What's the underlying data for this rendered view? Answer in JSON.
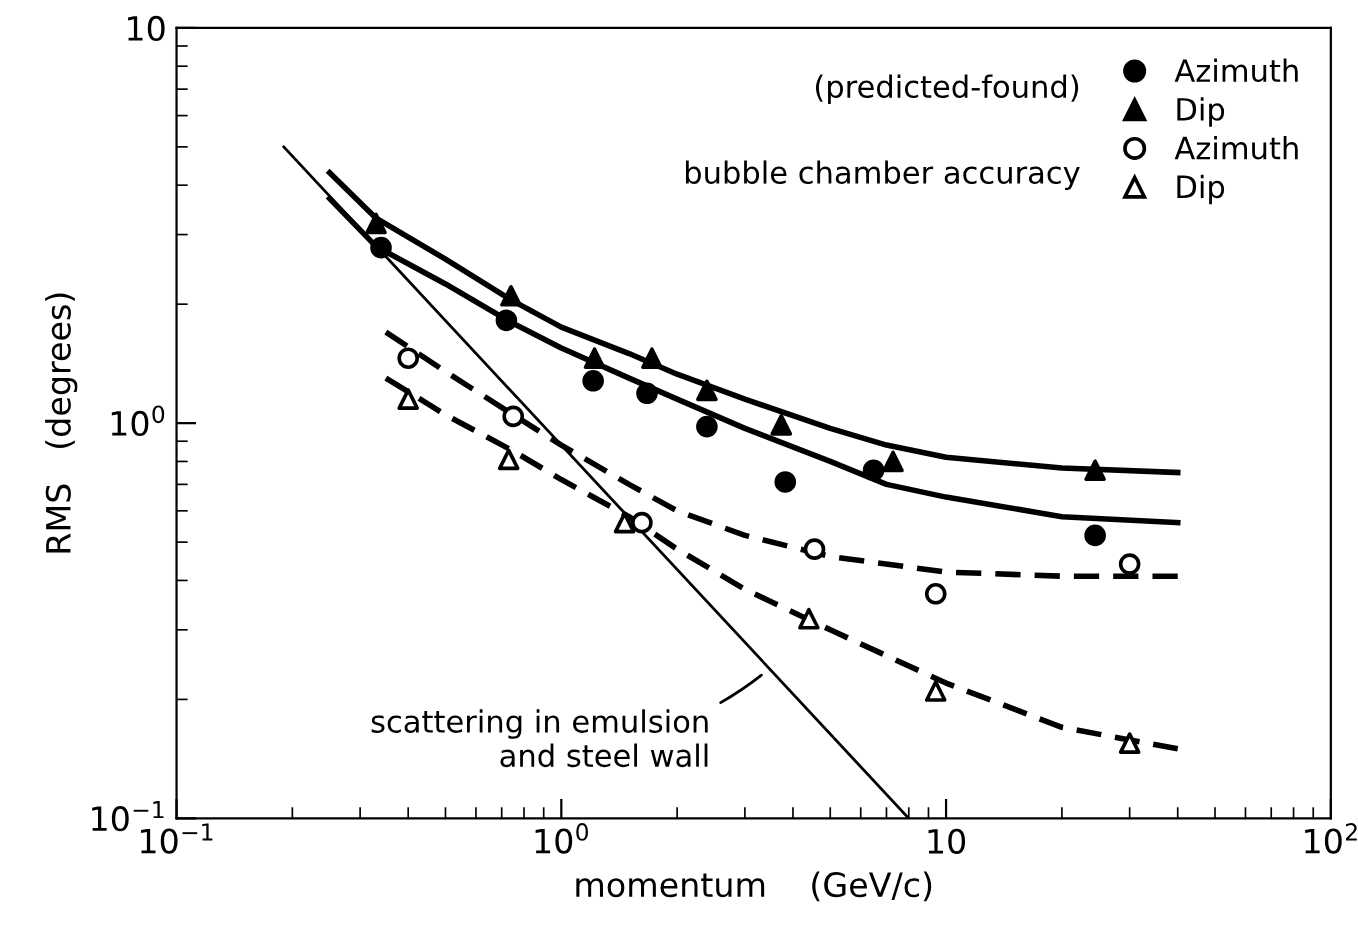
{
  "chart_data": {
    "type": "scatter",
    "xlabel": "momentum    (GeV/c)",
    "ylabel": "RMS   (degrees)",
    "log": "xy",
    "xlim": [
      0.1,
      100
    ],
    "ylim": [
      0.1,
      10
    ],
    "xticks": [
      {
        "value": 0.1,
        "label": "10$^{−1}$"
      },
      {
        "value": 1,
        "label": "10$^{0}$"
      },
      10,
      {
        "value": 100,
        "label": "10$^{2}$"
      }
    ],
    "yticks": [
      {
        "value": 0.1,
        "label": "10$^{−1}$"
      },
      {
        "value": 1,
        "label": "10$^{0}$"
      },
      10
    ],
    "grid": false,
    "legend": "top right",
    "annotations": [
      "(predicted-found)",
      "bubble chamber accuracy",
      {
        "text": "scattering in emulsion\nand steel wall",
        "x": 3.4,
        "y": 0.235
      }
    ],
    "series": [
      {
        "name": "Azimuth",
        "marker": "circle",
        "color": "#000000",
        "x": [
          0.34,
          0.72,
          1.21,
          1.67,
          2.39,
          3.82,
          6.48,
          24.4
        ],
        "values": [
          2.78,
          1.82,
          1.28,
          1.19,
          0.98,
          0.71,
          0.76,
          0.52
        ]
      },
      {
        "name": "Dip",
        "marker": "triangle",
        "color": "#000000",
        "x": [
          0.33,
          0.74,
          1.22,
          1.72,
          2.39,
          3.73,
          7.28,
          24.4
        ],
        "values": [
          3.2,
          2.1,
          1.46,
          1.46,
          1.21,
          0.99,
          0.8,
          0.76
        ]
      },
      {
        "name": "Azimuth",
        "marker": "circle",
        "color": "#000000",
        "x": [
          0.4,
          0.75,
          1.62,
          4.55,
          9.4,
          30
        ],
        "values": [
          1.46,
          1.04,
          0.56,
          0.48,
          0.37,
          0.44
        ]
      },
      {
        "name": "Dip",
        "marker": "triangle",
        "color": "#000000",
        "x": [
          0.4,
          0.73,
          1.46,
          4.4,
          9.4,
          30
        ],
        "values": [
          1.15,
          0.81,
          0.56,
          0.32,
          0.21,
          0.155
        ]
      },
      {
        "type": "line",
        "line_style": "solid",
        "color": "#000000",
        "x": [
          0.25,
          0.33,
          0.5,
          0.74,
          1,
          1.5,
          2,
          3,
          5,
          7,
          10,
          20,
          40
        ],
        "values": [
          4.3,
          3.3,
          2.6,
          2.05,
          1.75,
          1.5,
          1.33,
          1.15,
          0.97,
          0.88,
          0.82,
          0.77,
          0.75
        ]
      },
      {
        "type": "line",
        "line_style": "solid",
        "color": "#000000",
        "x": [
          0.25,
          0.33,
          0.5,
          0.74,
          1,
          1.5,
          2,
          3,
          5,
          7,
          10,
          20,
          40
        ],
        "values": [
          3.7,
          2.8,
          2.25,
          1.8,
          1.55,
          1.3,
          1.15,
          0.97,
          0.8,
          0.7,
          0.65,
          0.58,
          0.56
        ]
      },
      {
        "type": "line",
        "line_style": "dashed",
        "color": "#000000",
        "x": [
          0.35,
          0.5,
          0.75,
          1,
          1.5,
          2,
          3,
          5,
          10,
          20,
          40
        ],
        "values": [
          1.7,
          1.35,
          1.05,
          0.88,
          0.7,
          0.6,
          0.52,
          0.46,
          0.42,
          0.41,
          0.41
        ]
      },
      {
        "type": "line",
        "line_style": "dashed",
        "color": "#000000",
        "x": [
          0.35,
          0.5,
          0.75,
          1,
          1.5,
          2,
          3,
          5,
          10,
          20,
          40
        ],
        "values": [
          1.3,
          1.05,
          0.85,
          0.72,
          0.58,
          0.48,
          0.38,
          0.3,
          0.22,
          0.17,
          0.15
        ]
      },
      {
        "type": "line",
        "line_style": "solid",
        "color": "#000000",
        "x": [
          0.19,
          8
        ],
        "values": [
          5.0,
          0.1
        ]
      }
    ]
  }
}
